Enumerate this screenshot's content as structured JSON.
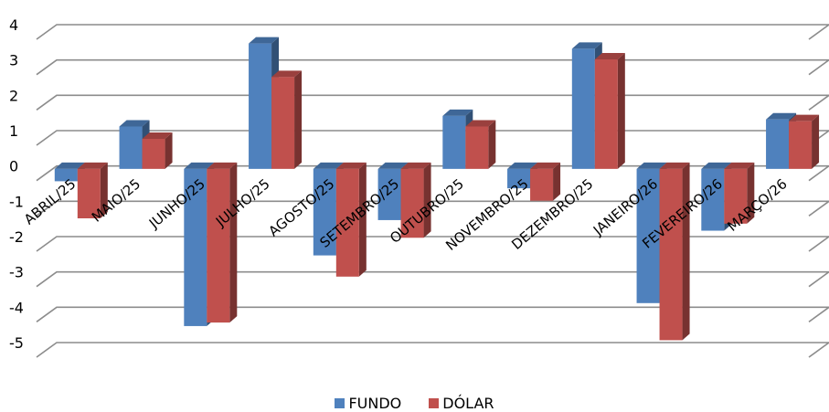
{
  "chart_data": {
    "type": "bar",
    "style": "3d-clustered-column",
    "categories": [
      "ABRIL/25",
      "MAIO/25",
      "JUNHO/25",
      "JULHO/25",
      "AGOSTO/25",
      "SETEMBRO/25",
      "OUTUBRO/25",
      "NOVEMBRO/25",
      "DEZEMBRO/25",
      "JANEIRO/26",
      "FEVEREIRO/26",
      "MARÇO/26"
    ],
    "series": [
      {
        "name": "FUNDO",
        "color": "#4F81BD",
        "values": [
          -0.35,
          1.2,
          -4.45,
          3.55,
          -2.45,
          -1.45,
          1.5,
          -0.55,
          3.4,
          -3.8,
          -1.75,
          1.4
        ]
      },
      {
        "name": "DÓLAR",
        "color": "#C0504D",
        "values": [
          -1.4,
          0.85,
          -4.35,
          2.6,
          -3.05,
          -1.95,
          1.2,
          -0.9,
          3.1,
          -4.85,
          -1.55,
          1.35
        ]
      }
    ],
    "ylim": [
      -5,
      4
    ],
    "yticks": [
      "-5",
      "-4",
      "-3",
      "-2",
      "-1",
      "0",
      "1",
      "2",
      "3",
      "4"
    ],
    "grid": true,
    "legend_position": "bottom"
  }
}
